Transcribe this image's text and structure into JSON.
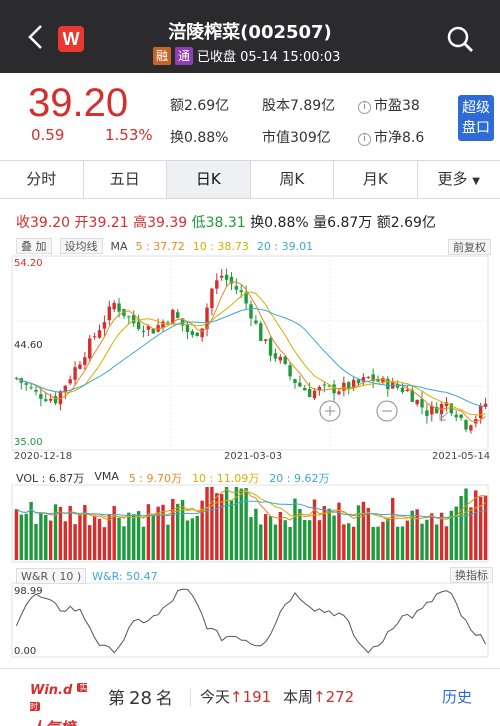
{
  "header": {
    "title": "涪陵榨菜(002507)",
    "tag_rong": "融",
    "tag_tong": "通",
    "status": "已收盘 05-14 15:00:03",
    "logo_letter": "W"
  },
  "quote": {
    "price": "39.20",
    "change": "0.59",
    "change_pct": "1.53%",
    "amount": "额2.69亿",
    "turnover": "换0.88%",
    "share_capital": "股本7.89亿",
    "market_value": "市值309亿",
    "pe": "市盈38",
    "pb": "市净8.6",
    "super_btn": "超级盘口"
  },
  "tabs": [
    "分时",
    "五日",
    "日K",
    "周K",
    "月K",
    "更多"
  ],
  "active_tab": "日K",
  "ohlc": {
    "close": "收39.20",
    "open": "开39.21",
    "high": "高39.39",
    "low": "低38.31",
    "turnover": "换0.88%",
    "volume": "量6.87万",
    "amount": "额2.69亿"
  },
  "ma_bar": {
    "btn_add": "叠 加",
    "btn_set": "设均线",
    "ma_label": "MA",
    "ma5": "5 : 37.72",
    "ma10": "10 : 38.73",
    "ma20": "20 : 39.01",
    "fq": "前复权"
  },
  "price_axis": {
    "high": "54.20",
    "mid": "44.60",
    "low": "35.00"
  },
  "date_axis": [
    "2020-12-18",
    "2021-03-03",
    "2021-05-14"
  ],
  "vol_bar": {
    "vol": "VOL : 6.87万",
    "vma": "VMA",
    "vma5": "5 : 9.70万",
    "vma10": "10 : 11.09万",
    "vma20": "20 : 9.62万"
  },
  "wr_bar": {
    "btn": "W&R ( 10 )",
    "value": "W&R: 50.47",
    "switch": "换指标",
    "axis_top": "98.99",
    "axis_bottom": "0.00"
  },
  "footer": {
    "brand_top": "Win.d",
    "brand_sup": "实时",
    "brand_bottom": "人气榜",
    "rank_prefix": "第",
    "rank_num": "28",
    "rank_suffix": "名",
    "today_label": "今天",
    "today_val": "191",
    "week_label": "本周",
    "week_val": "272",
    "history": "历史"
  },
  "colors": {
    "up": "#d62d2d",
    "down": "#1d9b3c",
    "ma5": "#e58a1f",
    "ma10": "#d4b000",
    "ma20": "#3fa6d8",
    "accent": "#2f6bd6"
  }
}
